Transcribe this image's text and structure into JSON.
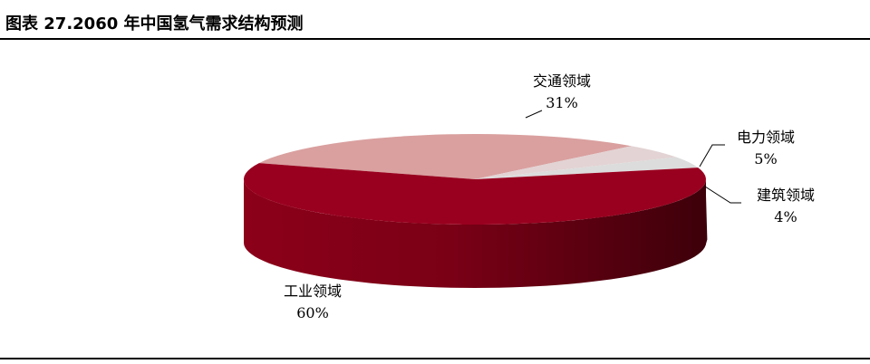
{
  "header": {
    "title": "图表 27.2060 年中国氢气需求结构预测"
  },
  "chart_data": {
    "type": "pie",
    "title": "",
    "categories": [
      "交通领域",
      "电力领域",
      "建筑领域",
      "工业领域"
    ],
    "values": [
      31,
      5,
      4,
      60
    ],
    "labels": [
      {
        "name": "交通领域",
        "value": "31%"
      },
      {
        "name": "电力领域",
        "value": "5%"
      },
      {
        "name": "建筑领域",
        "value": "4%"
      },
      {
        "name": "工业领域",
        "value": "60%"
      }
    ],
    "colors": [
      "#D9A09F",
      "#E3D3D4",
      "#DCDCDC",
      "#99001F"
    ],
    "style": "3d-exploded-perspective"
  }
}
